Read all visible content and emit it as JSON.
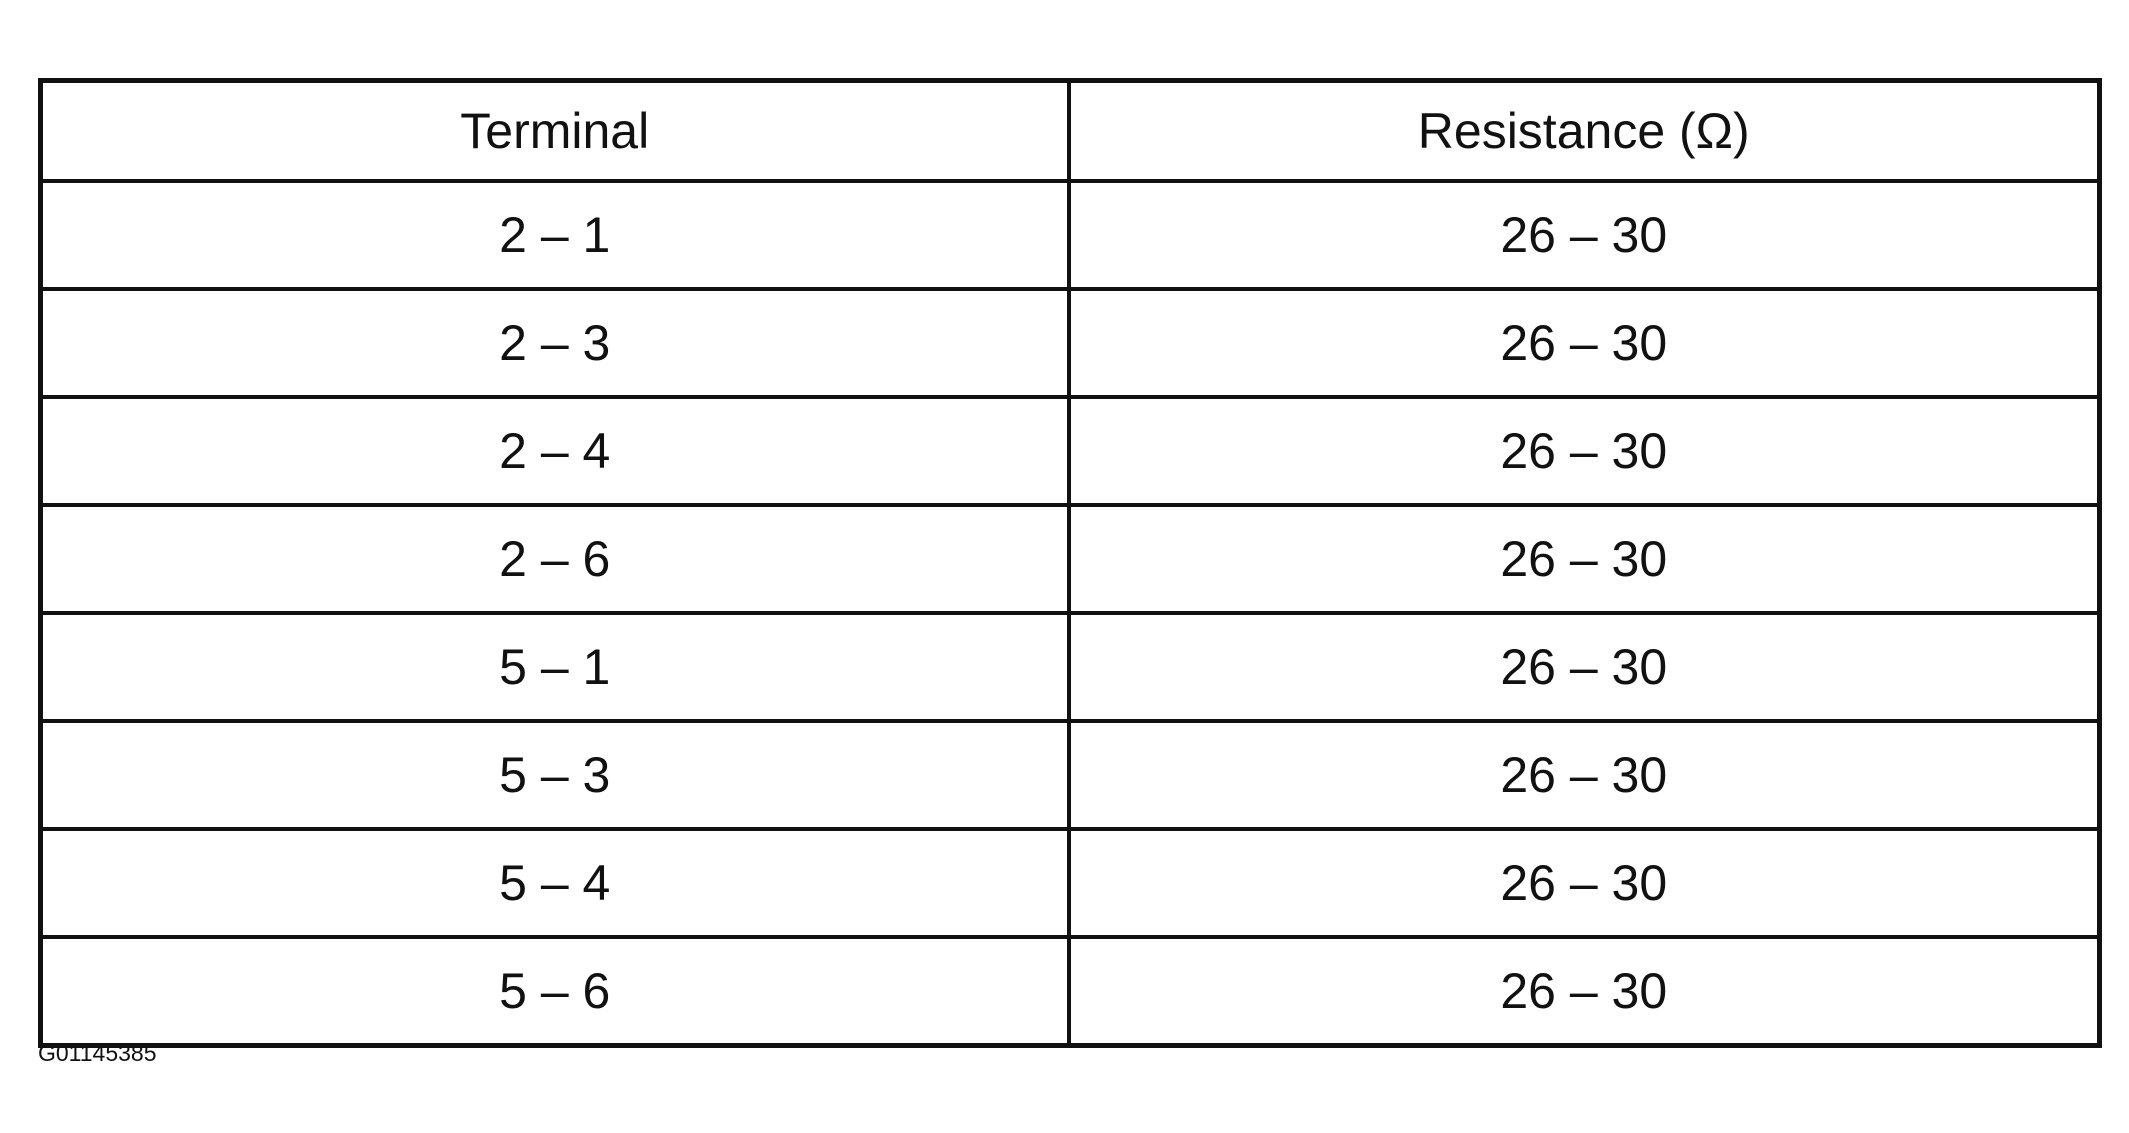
{
  "table": {
    "headers": [
      "Terminal",
      "Resistance (Ω)"
    ],
    "rows": [
      [
        "2 – 1",
        "26 – 30"
      ],
      [
        "2 – 3",
        "26 – 30"
      ],
      [
        "2 – 4",
        "26 – 30"
      ],
      [
        "2 – 6",
        "26 – 30"
      ],
      [
        "5 – 1",
        "26 – 30"
      ],
      [
        "5 – 3",
        "26 – 30"
      ],
      [
        "5 – 4",
        "26 – 30"
      ],
      [
        "5 – 6",
        "26 – 30"
      ]
    ]
  },
  "figure_id": "G01145385"
}
